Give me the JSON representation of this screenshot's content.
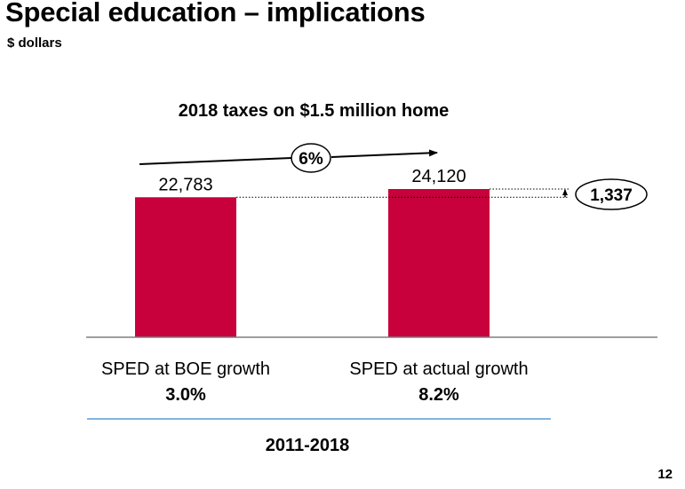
{
  "slide": {
    "title": "Special education – implications",
    "subtitle": "$ dollars",
    "page_number": "12"
  },
  "colors": {
    "bar": "#C8003C",
    "baseline": "#7F7F7F",
    "period_rule": "#5B9BD5"
  },
  "chart_data": {
    "type": "bar",
    "title": "2018 taxes on $1.5 million home",
    "categories": [
      "SPED at BOE growth",
      "SPED at actual growth"
    ],
    "category_sublabels": [
      "3.0%",
      "8.2%"
    ],
    "values": [
      22783,
      24120
    ],
    "value_labels": [
      "22,783",
      "24,120"
    ],
    "ylim": [
      0,
      24120
    ],
    "grid": false,
    "legend": "none",
    "growth_annotation": "6%",
    "difference_annotation": "1,337",
    "period_label": "2011-2018"
  }
}
